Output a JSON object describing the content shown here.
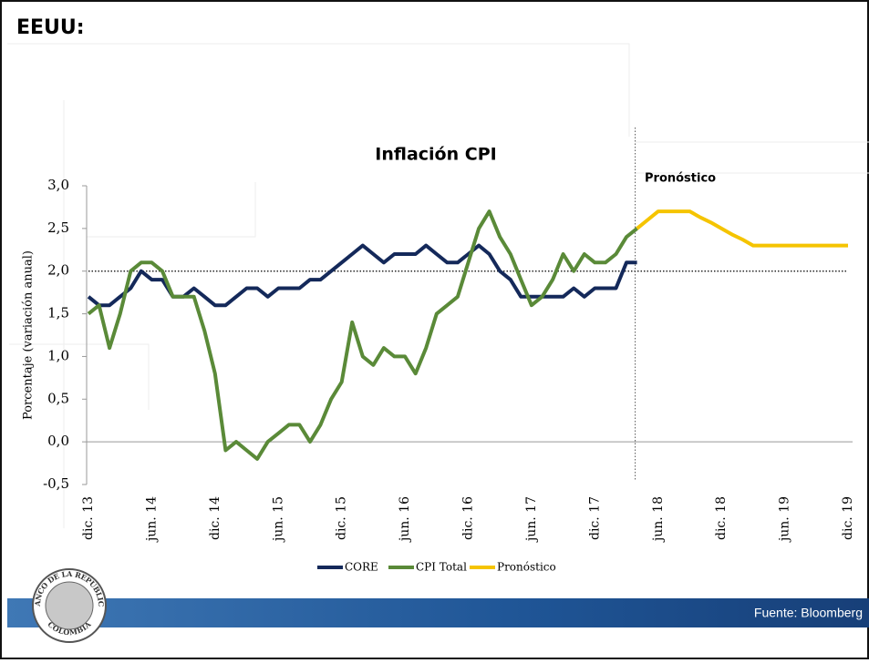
{
  "header": "EEUU:",
  "footer": "Fuente: Bloomberg",
  "logo": {
    "top": "BANCO DE LA REPUBLICA",
    "bottom": "COLOMBIA"
  },
  "chart_data": {
    "type": "line",
    "title": "Inflación CPI",
    "y_label": "Porcentaje (variación anual)",
    "annotation": "Pronóstico",
    "reference_value": 2,
    "ylim": [
      -0.5,
      3
    ],
    "yticks": [
      {
        "value": -0.5,
        "label": "-0,5"
      },
      {
        "value": 0,
        "label": "0,0"
      },
      {
        "value": 0.5,
        "label": "0,5"
      },
      {
        "value": 1,
        "label": "1,0"
      },
      {
        "value": 1.5,
        "label": "1,5"
      },
      {
        "value": 2,
        "label": "2,0"
      },
      {
        "value": 2.5,
        "label": "2,5"
      },
      {
        "value": 3,
        "label": "3,0"
      }
    ],
    "categories": [
      "dic. 13",
      null,
      null,
      null,
      null,
      null,
      "jun. 14",
      null,
      null,
      null,
      null,
      null,
      "dic. 14",
      null,
      null,
      null,
      null,
      null,
      "jun. 15",
      null,
      null,
      null,
      null,
      null,
      "dic. 15",
      null,
      null,
      null,
      null,
      null,
      "jun. 16",
      null,
      null,
      null,
      null,
      null,
      "dic. 16",
      null,
      null,
      null,
      null,
      null,
      "jun. 17",
      null,
      null,
      null,
      null,
      null,
      "dic. 17",
      null,
      null,
      null,
      null,
      null,
      "jun. 18",
      null,
      null,
      null,
      null,
      null,
      "dic. 18",
      null,
      null,
      null,
      null,
      null,
      "jun. 19",
      null,
      null,
      null,
      null,
      null,
      "dic. 19"
    ],
    "series": [
      {
        "name": "CORE",
        "color": "#14295a",
        "values": [
          1.7,
          1.6,
          1.6,
          1.7,
          1.8,
          2.0,
          1.9,
          1.9,
          1.7,
          1.7,
          1.8,
          1.7,
          1.6,
          1.6,
          1.7,
          1.8,
          1.8,
          1.7,
          1.8,
          1.8,
          1.8,
          1.9,
          1.9,
          2.0,
          2.1,
          2.2,
          2.3,
          2.2,
          2.1,
          2.2,
          2.2,
          2.2,
          2.3,
          2.2,
          2.1,
          2.1,
          2.2,
          2.3,
          2.2,
          2.0,
          1.9,
          1.7,
          1.7,
          1.7,
          1.7,
          1.7,
          1.8,
          1.7,
          1.8,
          1.8,
          1.8,
          2.1,
          2.1,
          null,
          null,
          null,
          null,
          null,
          null,
          null,
          null,
          null,
          null,
          null,
          null,
          null,
          null,
          null,
          null,
          null,
          null,
          null,
          null
        ]
      },
      {
        "name": "CPI Total",
        "color": "#5a8a38",
        "values": [
          1.5,
          1.6,
          1.1,
          1.5,
          2.0,
          2.1,
          2.1,
          2.0,
          1.7,
          1.7,
          1.7,
          1.3,
          0.8,
          -0.1,
          0.0,
          -0.1,
          -0.2,
          0.0,
          0.1,
          0.2,
          0.2,
          0.0,
          0.2,
          0.5,
          0.7,
          1.4,
          1.0,
          0.9,
          1.1,
          1.0,
          1.0,
          0.8,
          1.1,
          1.5,
          1.6,
          1.7,
          2.1,
          2.5,
          2.7,
          2.4,
          2.2,
          1.9,
          1.6,
          1.7,
          1.9,
          2.2,
          2.0,
          2.2,
          2.1,
          2.1,
          2.2,
          2.4,
          2.5,
          null,
          null,
          null,
          null,
          null,
          null,
          null,
          null,
          null,
          null,
          null,
          null,
          null,
          null,
          null,
          null,
          null,
          null,
          null,
          null
        ]
      },
      {
        "name": "Pronóstico",
        "color": "#f5c400",
        "values": [
          null,
          null,
          null,
          null,
          null,
          null,
          null,
          null,
          null,
          null,
          null,
          null,
          null,
          null,
          null,
          null,
          null,
          null,
          null,
          null,
          null,
          null,
          null,
          null,
          null,
          null,
          null,
          null,
          null,
          null,
          null,
          null,
          null,
          null,
          null,
          null,
          null,
          null,
          null,
          null,
          null,
          null,
          null,
          null,
          null,
          null,
          null,
          null,
          null,
          null,
          null,
          null,
          2.5,
          2.6,
          2.7,
          2.7,
          2.7,
          2.7,
          2.63,
          2.57,
          2.5,
          2.43,
          2.37,
          2.3,
          2.3,
          2.3,
          2.3,
          2.3,
          2.3,
          2.3,
          2.3,
          2.3,
          2.3
        ]
      }
    ]
  }
}
